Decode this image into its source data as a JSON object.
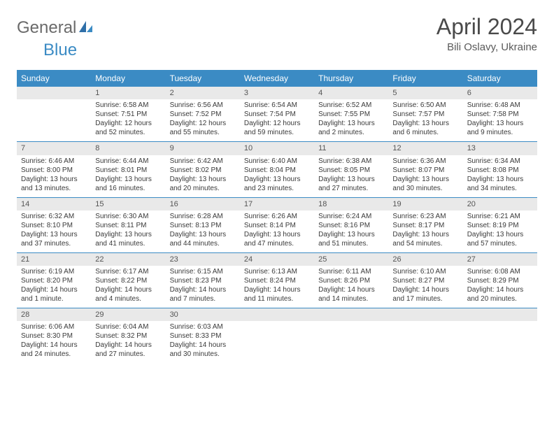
{
  "logo": {
    "word1": "General",
    "word2": "Blue"
  },
  "title": "April 2024",
  "location": "Bili Oslavy, Ukraine",
  "day_names": [
    "Sunday",
    "Monday",
    "Tuesday",
    "Wednesday",
    "Thursday",
    "Friday",
    "Saturday"
  ],
  "colors": {
    "header_bg": "#3b8bc4",
    "header_text": "#ffffff",
    "daynum_bg": "#e9e9e9",
    "divider": "#3b8bc4",
    "logo_gray": "#6a6a6a",
    "logo_blue": "#3b8bc4",
    "body_text": "#3a3a3a"
  },
  "fonts": {
    "month_title_pt": 32,
    "location_pt": 15,
    "day_header_pt": 12,
    "daynum_pt": 11,
    "cell_pt": 10
  },
  "weeks": [
    [
      {
        "n": "",
        "sunrise": "",
        "sunset": "",
        "daylight": ""
      },
      {
        "n": "1",
        "sunrise": "Sunrise: 6:58 AM",
        "sunset": "Sunset: 7:51 PM",
        "daylight": "Daylight: 12 hours and 52 minutes."
      },
      {
        "n": "2",
        "sunrise": "Sunrise: 6:56 AM",
        "sunset": "Sunset: 7:52 PM",
        "daylight": "Daylight: 12 hours and 55 minutes."
      },
      {
        "n": "3",
        "sunrise": "Sunrise: 6:54 AM",
        "sunset": "Sunset: 7:54 PM",
        "daylight": "Daylight: 12 hours and 59 minutes."
      },
      {
        "n": "4",
        "sunrise": "Sunrise: 6:52 AM",
        "sunset": "Sunset: 7:55 PM",
        "daylight": "Daylight: 13 hours and 2 minutes."
      },
      {
        "n": "5",
        "sunrise": "Sunrise: 6:50 AM",
        "sunset": "Sunset: 7:57 PM",
        "daylight": "Daylight: 13 hours and 6 minutes."
      },
      {
        "n": "6",
        "sunrise": "Sunrise: 6:48 AM",
        "sunset": "Sunset: 7:58 PM",
        "daylight": "Daylight: 13 hours and 9 minutes."
      }
    ],
    [
      {
        "n": "7",
        "sunrise": "Sunrise: 6:46 AM",
        "sunset": "Sunset: 8:00 PM",
        "daylight": "Daylight: 13 hours and 13 minutes."
      },
      {
        "n": "8",
        "sunrise": "Sunrise: 6:44 AM",
        "sunset": "Sunset: 8:01 PM",
        "daylight": "Daylight: 13 hours and 16 minutes."
      },
      {
        "n": "9",
        "sunrise": "Sunrise: 6:42 AM",
        "sunset": "Sunset: 8:02 PM",
        "daylight": "Daylight: 13 hours and 20 minutes."
      },
      {
        "n": "10",
        "sunrise": "Sunrise: 6:40 AM",
        "sunset": "Sunset: 8:04 PM",
        "daylight": "Daylight: 13 hours and 23 minutes."
      },
      {
        "n": "11",
        "sunrise": "Sunrise: 6:38 AM",
        "sunset": "Sunset: 8:05 PM",
        "daylight": "Daylight: 13 hours and 27 minutes."
      },
      {
        "n": "12",
        "sunrise": "Sunrise: 6:36 AM",
        "sunset": "Sunset: 8:07 PM",
        "daylight": "Daylight: 13 hours and 30 minutes."
      },
      {
        "n": "13",
        "sunrise": "Sunrise: 6:34 AM",
        "sunset": "Sunset: 8:08 PM",
        "daylight": "Daylight: 13 hours and 34 minutes."
      }
    ],
    [
      {
        "n": "14",
        "sunrise": "Sunrise: 6:32 AM",
        "sunset": "Sunset: 8:10 PM",
        "daylight": "Daylight: 13 hours and 37 minutes."
      },
      {
        "n": "15",
        "sunrise": "Sunrise: 6:30 AM",
        "sunset": "Sunset: 8:11 PM",
        "daylight": "Daylight: 13 hours and 41 minutes."
      },
      {
        "n": "16",
        "sunrise": "Sunrise: 6:28 AM",
        "sunset": "Sunset: 8:13 PM",
        "daylight": "Daylight: 13 hours and 44 minutes."
      },
      {
        "n": "17",
        "sunrise": "Sunrise: 6:26 AM",
        "sunset": "Sunset: 8:14 PM",
        "daylight": "Daylight: 13 hours and 47 minutes."
      },
      {
        "n": "18",
        "sunrise": "Sunrise: 6:24 AM",
        "sunset": "Sunset: 8:16 PM",
        "daylight": "Daylight: 13 hours and 51 minutes."
      },
      {
        "n": "19",
        "sunrise": "Sunrise: 6:23 AM",
        "sunset": "Sunset: 8:17 PM",
        "daylight": "Daylight: 13 hours and 54 minutes."
      },
      {
        "n": "20",
        "sunrise": "Sunrise: 6:21 AM",
        "sunset": "Sunset: 8:19 PM",
        "daylight": "Daylight: 13 hours and 57 minutes."
      }
    ],
    [
      {
        "n": "21",
        "sunrise": "Sunrise: 6:19 AM",
        "sunset": "Sunset: 8:20 PM",
        "daylight": "Daylight: 14 hours and 1 minute."
      },
      {
        "n": "22",
        "sunrise": "Sunrise: 6:17 AM",
        "sunset": "Sunset: 8:22 PM",
        "daylight": "Daylight: 14 hours and 4 minutes."
      },
      {
        "n": "23",
        "sunrise": "Sunrise: 6:15 AM",
        "sunset": "Sunset: 8:23 PM",
        "daylight": "Daylight: 14 hours and 7 minutes."
      },
      {
        "n": "24",
        "sunrise": "Sunrise: 6:13 AM",
        "sunset": "Sunset: 8:24 PM",
        "daylight": "Daylight: 14 hours and 11 minutes."
      },
      {
        "n": "25",
        "sunrise": "Sunrise: 6:11 AM",
        "sunset": "Sunset: 8:26 PM",
        "daylight": "Daylight: 14 hours and 14 minutes."
      },
      {
        "n": "26",
        "sunrise": "Sunrise: 6:10 AM",
        "sunset": "Sunset: 8:27 PM",
        "daylight": "Daylight: 14 hours and 17 minutes."
      },
      {
        "n": "27",
        "sunrise": "Sunrise: 6:08 AM",
        "sunset": "Sunset: 8:29 PM",
        "daylight": "Daylight: 14 hours and 20 minutes."
      }
    ],
    [
      {
        "n": "28",
        "sunrise": "Sunrise: 6:06 AM",
        "sunset": "Sunset: 8:30 PM",
        "daylight": "Daylight: 14 hours and 24 minutes."
      },
      {
        "n": "29",
        "sunrise": "Sunrise: 6:04 AM",
        "sunset": "Sunset: 8:32 PM",
        "daylight": "Daylight: 14 hours and 27 minutes."
      },
      {
        "n": "30",
        "sunrise": "Sunrise: 6:03 AM",
        "sunset": "Sunset: 8:33 PM",
        "daylight": "Daylight: 14 hours and 30 minutes."
      },
      {
        "n": "",
        "sunrise": "",
        "sunset": "",
        "daylight": ""
      },
      {
        "n": "",
        "sunrise": "",
        "sunset": "",
        "daylight": ""
      },
      {
        "n": "",
        "sunrise": "",
        "sunset": "",
        "daylight": ""
      },
      {
        "n": "",
        "sunrise": "",
        "sunset": "",
        "daylight": ""
      }
    ]
  ]
}
